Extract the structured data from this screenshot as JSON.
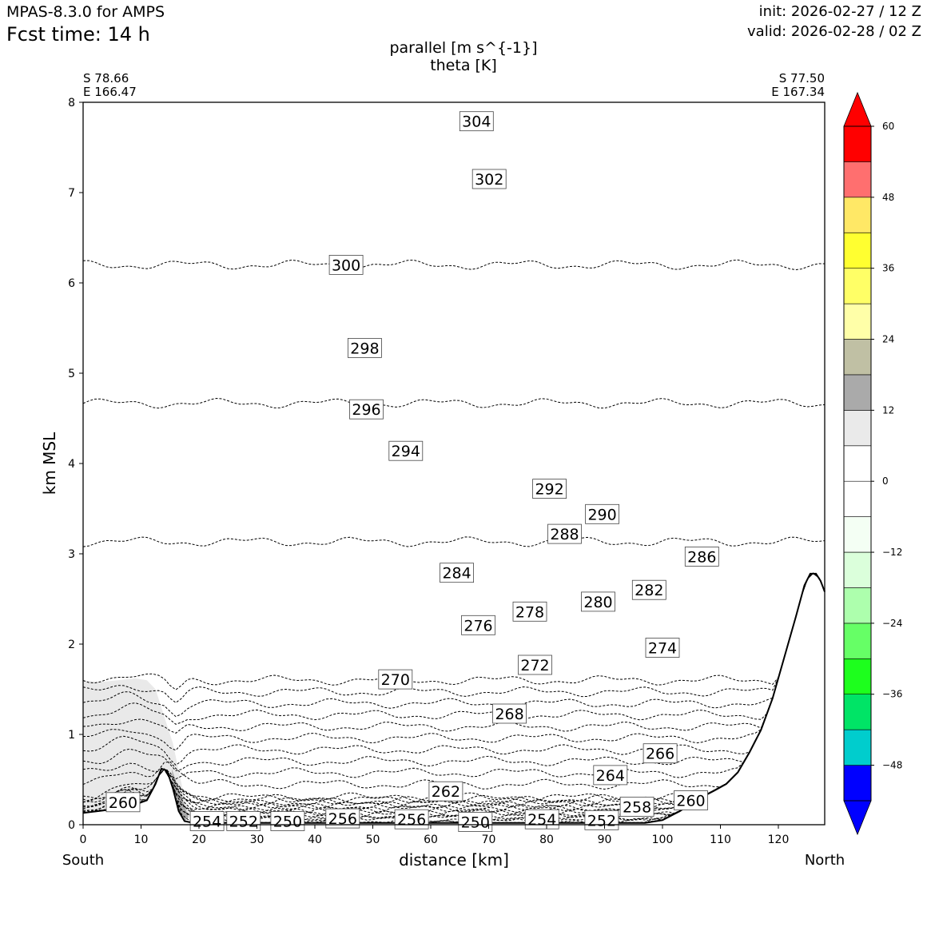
{
  "header": {
    "model": "MPAS-8.3.0 for AMPS",
    "forecast_time": "Fcst time:   14 h",
    "init": "init: 2026-02-27 / 12 Z",
    "valid": "valid: 2026-02-28 / 02 Z",
    "title_line1": "parallel [m s^{-1}]",
    "title_line2": "theta [K]"
  },
  "chart_data": {
    "type": "cross-section contour",
    "xlabel": "distance [km]",
    "ylabel": "km MSL",
    "xlim": [
      0,
      128
    ],
    "ylim": [
      0,
      8
    ],
    "xticks": [
      "0",
      "10",
      "20",
      "30",
      "40",
      "50",
      "60",
      "70",
      "80",
      "90",
      "100",
      "110",
      "120"
    ],
    "yticks": [
      "0",
      "1",
      "2",
      "3",
      "4",
      "5",
      "6",
      "7",
      "8"
    ],
    "start_point": {
      "lat": "S 78.66",
      "lon": "E 166.47",
      "end_label": "South"
    },
    "end_point": {
      "lat": "S 77.50",
      "lon": "E 167.34",
      "end_label": "North"
    },
    "terrain_km": [
      [
        0,
        0.13
      ],
      [
        5,
        0.17
      ],
      [
        8,
        0.2
      ],
      [
        11,
        0.27
      ],
      [
        12.5,
        0.45
      ],
      [
        13.5,
        0.62
      ],
      [
        14.5,
        0.6
      ],
      [
        15.5,
        0.4
      ],
      [
        16.5,
        0.15
      ],
      [
        17.5,
        0.04
      ],
      [
        19,
        0.02
      ],
      [
        30,
        0.02
      ],
      [
        45,
        0.02
      ],
      [
        55,
        0.02
      ],
      [
        70,
        0.02
      ],
      [
        85,
        0.02
      ],
      [
        97,
        0.02
      ],
      [
        100,
        0.05
      ],
      [
        103,
        0.15
      ],
      [
        106,
        0.28
      ],
      [
        109,
        0.38
      ],
      [
        111,
        0.45
      ],
      [
        113,
        0.58
      ],
      [
        115,
        0.8
      ],
      [
        117,
        1.05
      ],
      [
        119,
        1.4
      ],
      [
        121,
        1.85
      ],
      [
        123,
        2.3
      ],
      [
        124.5,
        2.65
      ],
      [
        125.5,
        2.78
      ],
      [
        126.5,
        2.78
      ],
      [
        127.3,
        2.7
      ],
      [
        128,
        2.58
      ]
    ],
    "theta_contours_K": [
      250,
      252,
      254,
      256,
      258,
      260,
      262,
      264,
      266,
      268,
      270,
      272,
      274,
      276,
      278,
      280,
      282,
      284,
      286,
      288,
      290,
      292,
      294,
      296,
      298,
      300,
      302,
      304
    ],
    "theta_labels": [
      {
        "text": "304",
        "x": 67.9,
        "z": 7.79
      },
      {
        "text": "302",
        "x": 70.1,
        "z": 7.15
      },
      {
        "text": "300",
        "x": 45.4,
        "z": 6.2
      },
      {
        "text": "298",
        "x": 48.6,
        "z": 5.28
      },
      {
        "text": "296",
        "x": 48.9,
        "z": 4.6
      },
      {
        "text": "294",
        "x": 55.7,
        "z": 4.14
      },
      {
        "text": "292",
        "x": 80.5,
        "z": 3.72
      },
      {
        "text": "290",
        "x": 89.6,
        "z": 3.44
      },
      {
        "text": "288",
        "x": 83.1,
        "z": 3.22
      },
      {
        "text": "286",
        "x": 106.8,
        "z": 2.97
      },
      {
        "text": "284",
        "x": 64.5,
        "z": 2.79
      },
      {
        "text": "282",
        "x": 97.7,
        "z": 2.6
      },
      {
        "text": "280",
        "x": 88.9,
        "z": 2.47
      },
      {
        "text": "278",
        "x": 77.1,
        "z": 2.36
      },
      {
        "text": "276",
        "x": 68.2,
        "z": 2.21
      },
      {
        "text": "274",
        "x": 100.0,
        "z": 1.96
      },
      {
        "text": "272",
        "x": 78.0,
        "z": 1.77
      },
      {
        "text": "270",
        "x": 53.9,
        "z": 1.61
      },
      {
        "text": "268",
        "x": 73.6,
        "z": 1.23
      },
      {
        "text": "266",
        "x": 99.6,
        "z": 0.79
      },
      {
        "text": "264",
        "x": 91.0,
        "z": 0.55
      },
      {
        "text": "262",
        "x": 62.6,
        "z": 0.37
      },
      {
        "text": "260",
        "x": 6.9,
        "z": 0.25
      },
      {
        "text": "260",
        "x": 104.9,
        "z": 0.27
      },
      {
        "text": "258",
        "x": 95.6,
        "z": 0.2
      },
      {
        "text": "256",
        "x": 44.8,
        "z": 0.07
      },
      {
        "text": "256",
        "x": 56.7,
        "z": 0.06
      },
      {
        "text": "254",
        "x": 21.4,
        "z": 0.04
      },
      {
        "text": "254",
        "x": 79.2,
        "z": 0.06
      },
      {
        "text": "252",
        "x": 27.7,
        "z": 0.04
      },
      {
        "text": "252",
        "x": 89.5,
        "z": 0.05
      },
      {
        "text": "250",
        "x": 35.3,
        "z": 0.04
      },
      {
        "text": "250",
        "x": 67.7,
        "z": 0.03
      }
    ],
    "parallel_wind_shading_ms": [
      {
        "label": "6 to 12 m s-1 region",
        "color": "#e9e9e9",
        "outline_km": [
          [
            0,
            1.6
          ],
          [
            3,
            1.58
          ],
          [
            6,
            1.6
          ],
          [
            9,
            1.62
          ],
          [
            11,
            1.6
          ],
          [
            12.5,
            1.5
          ],
          [
            13.5,
            1.3
          ],
          [
            14.5,
            1.1
          ],
          [
            15.5,
            0.9
          ],
          [
            16.5,
            0.6
          ],
          [
            17.5,
            0.3
          ],
          [
            18.5,
            0.1
          ],
          [
            17.5,
            0.04
          ],
          [
            16.5,
            0.15
          ],
          [
            15.5,
            0.4
          ],
          [
            14.5,
            0.6
          ],
          [
            13.5,
            0.62
          ],
          [
            12.5,
            0.45
          ],
          [
            11,
            0.27
          ],
          [
            8,
            0.2
          ],
          [
            5,
            0.17
          ],
          [
            2,
            0.14
          ],
          [
            0,
            0.13
          ]
        ]
      },
      {
        "label": "12 to 18 m s-1 core",
        "color": "#aaaaaa",
        "outline_km": [
          [
            15.3,
            0.62
          ],
          [
            16.2,
            0.45
          ],
          [
            17.3,
            0.25
          ],
          [
            18.2,
            0.08
          ],
          [
            17.5,
            0.04
          ],
          [
            16.5,
            0.15
          ],
          [
            15.6,
            0.38
          ]
        ]
      }
    ],
    "colorbar": {
      "ticks": [
        "60",
        "48",
        "36",
        "24",
        "12",
        "0",
        "−12",
        "−24",
        "−36",
        "−48"
      ],
      "levels": [
        -54,
        -48,
        -42,
        -36,
        -30,
        -24,
        -18,
        -12,
        -6,
        0,
        6,
        12,
        18,
        24,
        30,
        36,
        42,
        48,
        54,
        60
      ],
      "colors": [
        "#0000ff",
        "#00cdcd",
        "#00e466",
        "#1dff1d",
        "#66ff66",
        "#adffad",
        "#dbffdb",
        "#f4fff4",
        "#ffffff",
        "#ffffff",
        "#eaeaea",
        "#aaaaaa",
        "#c0c0a4",
        "#ffffa8",
        "#ffff66",
        "#ffff30",
        "#ffe866",
        "#ff6f6f",
        "#ff0000"
      ],
      "under_color": "#0000ff",
      "over_color": "#ff0000"
    }
  }
}
